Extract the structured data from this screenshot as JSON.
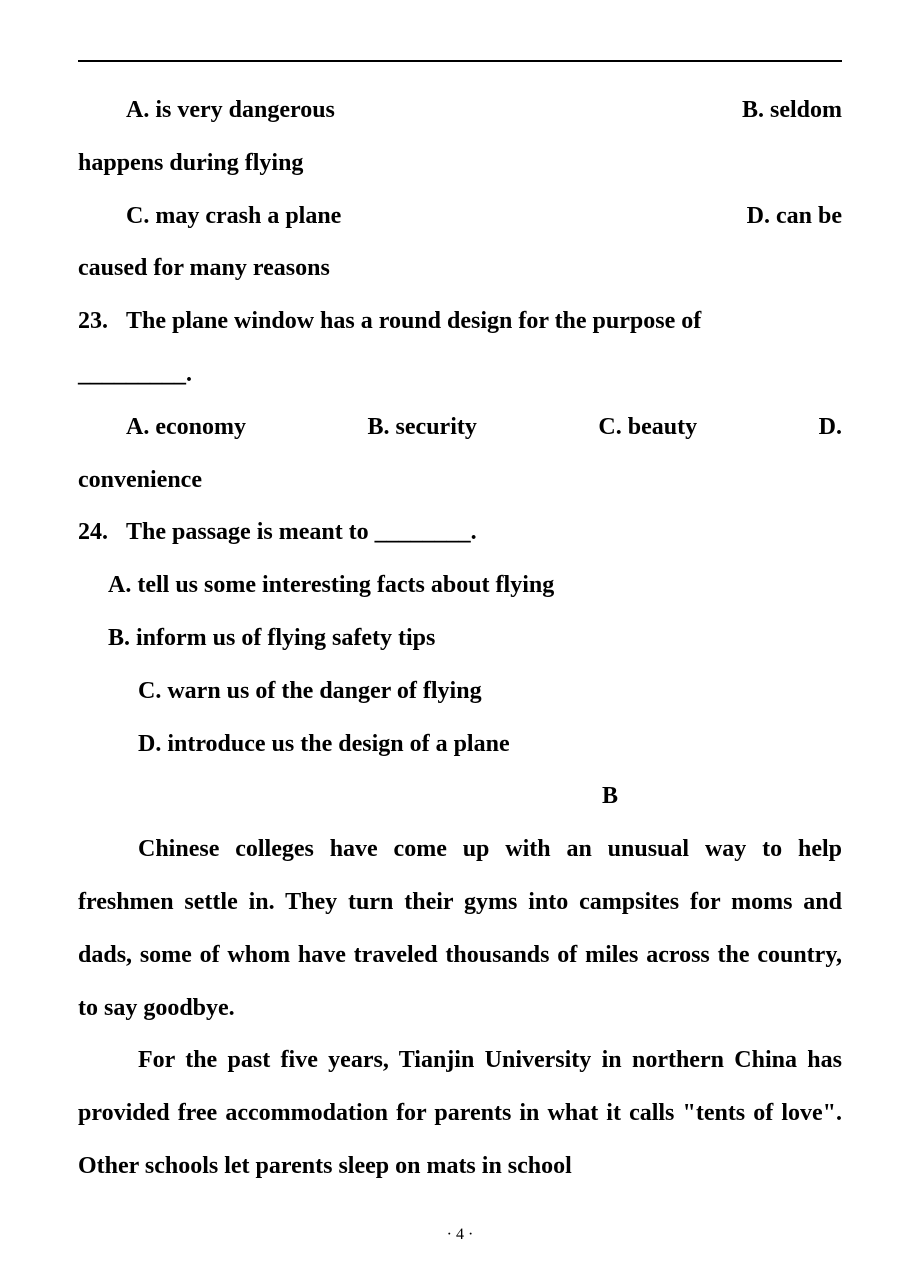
{
  "q22": {
    "row1_left": "A. is very dangerous",
    "row1_right": "B. seldom",
    "row1_cont": "happens during flying",
    "row2_left": "C. may crash a plane",
    "row2_right": "D. can be",
    "row2_cont": "caused for many reasons"
  },
  "q23": {
    "num": "23.",
    "text_line1": "The plane window has a round design for the purpose of",
    "text_line2": "_________.",
    "optA": "A. economy",
    "optB": "B. security",
    "optC": "C.  beauty",
    "optD": "D.",
    "optD_cont": "convenience"
  },
  "q24": {
    "num": "24.",
    "text": "The passage is meant to ________.",
    "optA": "A. tell us some interesting facts about flying",
    "optB": "B. inform us of flying safety tips",
    "optC": "C. warn us of the danger of flying",
    "optD": "D. introduce us the design of a plane"
  },
  "sectionB": {
    "letter": "B",
    "para1": "Chinese colleges have come up with an unusual way to help freshmen settle in. They turn their gyms into campsites for moms and dads, some of whom have traveled thousands of miles across the country, to say goodbye.",
    "para2": "For the past five years, Tianjin University in northern China has provided free accommodation for parents in what it calls \"tents of love\". Other schools let parents sleep on mats in school"
  },
  "pageNum": "4"
}
